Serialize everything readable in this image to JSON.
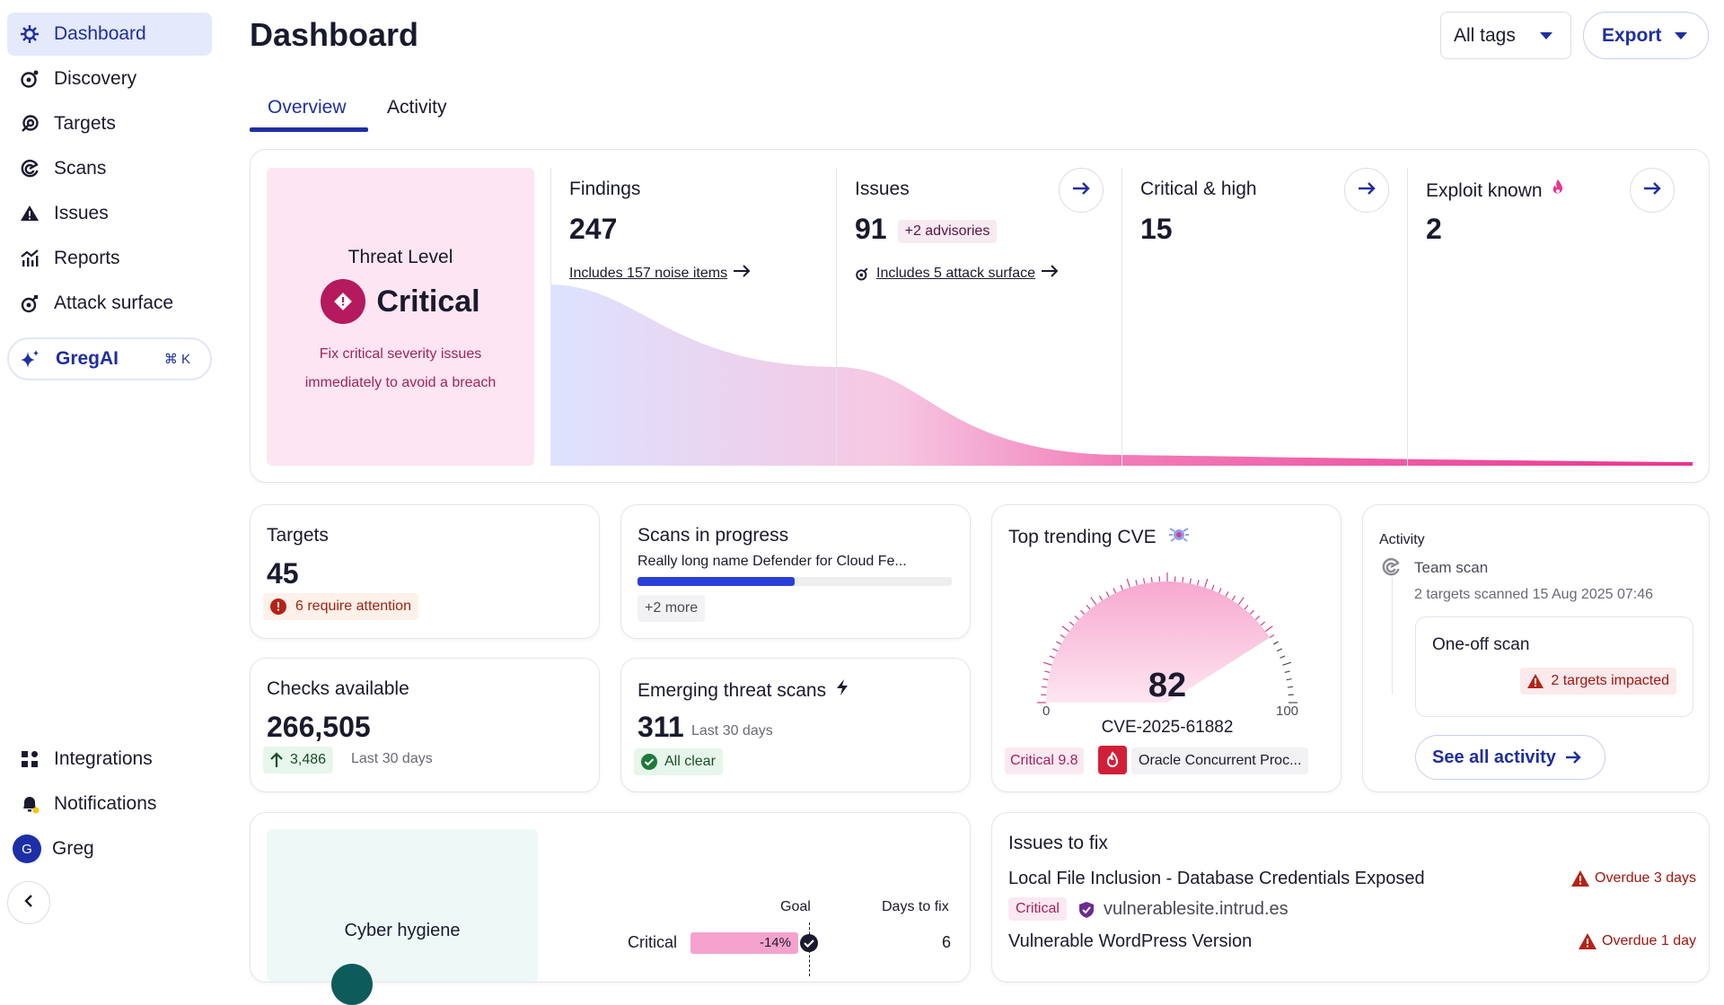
{
  "sidebar": {
    "items": [
      {
        "label": "Dashboard",
        "icon": "dashboard-icon",
        "active": true
      },
      {
        "label": "Discovery",
        "icon": "discovery-icon"
      },
      {
        "label": "Targets",
        "icon": "targets-icon"
      },
      {
        "label": "Scans",
        "icon": "scans-icon"
      },
      {
        "label": "Issues",
        "icon": "issues-icon"
      },
      {
        "label": "Reports",
        "icon": "reports-icon"
      },
      {
        "label": "Attack surface",
        "icon": "attack-surface-icon"
      }
    ],
    "gregai": {
      "label": "GregAI",
      "shortcut": "⌘ K"
    },
    "bottom": [
      {
        "label": "Integrations",
        "icon": "integrations-icon"
      },
      {
        "label": "Notifications",
        "icon": "notifications-icon"
      }
    ],
    "user": {
      "initial": "G",
      "name": "Greg"
    }
  },
  "header": {
    "title": "Dashboard",
    "tags_select": "All tags",
    "export_label": "Export",
    "tabs": [
      {
        "label": "Overview",
        "active": true
      },
      {
        "label": "Activity"
      }
    ]
  },
  "threat": {
    "title": "Threat Level",
    "level": "Critical",
    "desc_line1": "Fix critical severity issues",
    "desc_line2": "immediately to avoid a breach"
  },
  "metrics": {
    "findings": {
      "label": "Findings",
      "value": "247",
      "sub": "Includes 157 noise items"
    },
    "issues": {
      "label": "Issues",
      "value": "91",
      "badge": "+2 advisories",
      "sub": "Includes 5 attack surface"
    },
    "critical_high": {
      "label": "Critical & high",
      "value": "15"
    },
    "exploit_known": {
      "label": "Exploit known",
      "value": "2"
    }
  },
  "targets": {
    "label": "Targets",
    "value": "45",
    "attention": "6 require attention"
  },
  "scans_progress": {
    "label": "Scans in progress",
    "name": "Really long name Defender for Cloud Fe...",
    "progress": 0.5,
    "more": "+2 more"
  },
  "checks": {
    "label": "Checks available",
    "value": "266,505",
    "delta": "3,486",
    "period": "Last 30 days"
  },
  "emerging": {
    "label": "Emerging threat scans",
    "value": "311",
    "period": "Last 30 days",
    "status": "All clear"
  },
  "cve": {
    "label": "Top trending CVE",
    "score": "82",
    "min": "0",
    "max": "100",
    "score_value": 82,
    "id": "CVE-2025-61882",
    "severity": "Critical 9.8",
    "product": "Oracle Concurrent Proc..."
  },
  "activity": {
    "label": "Activity",
    "item_title": "Team scan",
    "item_sub": "2 targets scanned 15 Aug 2025 07:46",
    "oneoff": "One-off scan",
    "impact": "2 targets impacted",
    "see_all": "See all activity"
  },
  "hygiene": {
    "label": "Cyber hygiene",
    "goal_hdr": "Goal",
    "days_hdr": "Days to fix",
    "row_label": "Critical",
    "row_pct": "-14%",
    "row_days": "6"
  },
  "issues_fix": {
    "label": "Issues to fix",
    "rows": [
      {
        "title": "Local File Inclusion - Database Credentials Exposed",
        "severity": "Critical",
        "site": "vulnerablesite.intrud.es",
        "overdue": "Overdue 3 days"
      },
      {
        "title": "Vulnerable WordPress Version",
        "overdue": "Overdue 1 day"
      }
    ]
  },
  "colors": {
    "accent": "#1f2fa0",
    "critical": "#b5195e",
    "pink": "#f27cb8"
  }
}
